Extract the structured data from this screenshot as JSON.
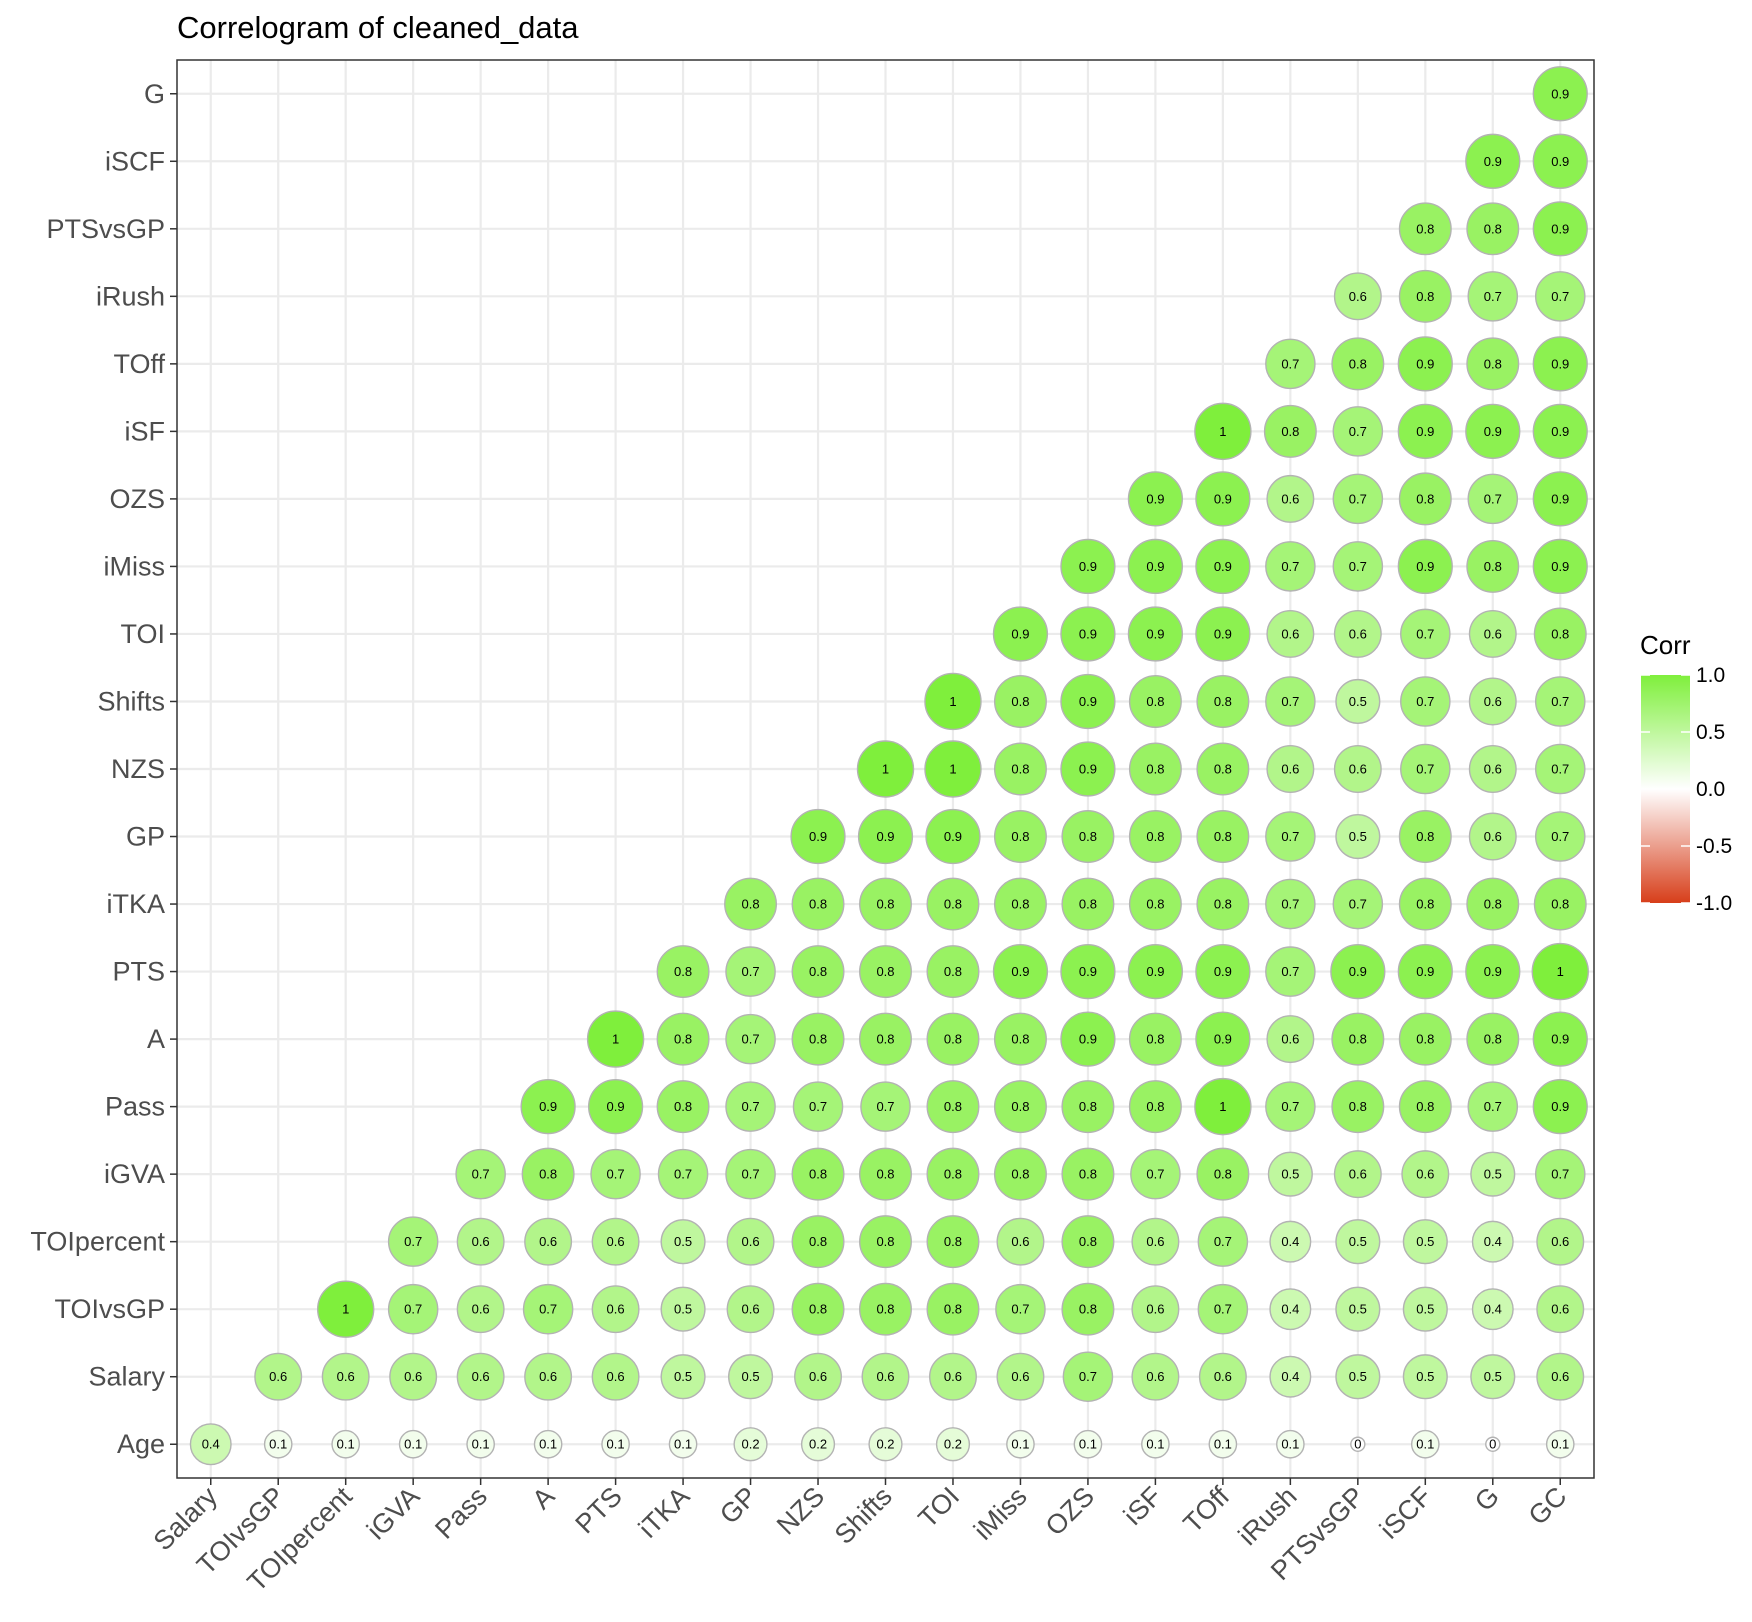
{
  "chart_data": {
    "type": "heatmap",
    "title": "Correlogram of cleaned_data",
    "xlabel": "",
    "ylabel": "",
    "x_categories": [
      "Salary",
      "TOIvsGP",
      "TOIpercent",
      "iGVA",
      "Pass",
      "A",
      "PTS",
      "iTKA",
      "GP",
      "NZS",
      "Shifts",
      "TOI",
      "iMiss",
      "OZS",
      "iSF",
      "TOff",
      "iRush",
      "PTSvsGP",
      "iSCF",
      "G",
      "GC"
    ],
    "y_categories": [
      "Age",
      "Salary",
      "TOIvsGP",
      "TOIpercent",
      "iGVA",
      "Pass",
      "A",
      "PTS",
      "iTKA",
      "GP",
      "NZS",
      "Shifts",
      "TOI",
      "iMiss",
      "OZS",
      "iSF",
      "TOff",
      "iRush",
      "PTSvsGP",
      "iSCF",
      "G"
    ],
    "rows": [
      {
        "y": "Age",
        "values": [
          0.4,
          0.1,
          0.1,
          0.1,
          0.1,
          0.1,
          0.1,
          0.1,
          0.2,
          0.2,
          0.2,
          0.2,
          0.1,
          0.1,
          0.1,
          0.1,
          0.1,
          0,
          0.1,
          0,
          0.1
        ]
      },
      {
        "y": "Salary",
        "values": [
          null,
          0.6,
          0.6,
          0.6,
          0.6,
          0.6,
          0.6,
          0.5,
          0.5,
          0.6,
          0.6,
          0.6,
          0.6,
          0.7,
          0.6,
          0.6,
          0.4,
          0.5,
          0.5,
          0.5,
          0.6
        ]
      },
      {
        "y": "TOIvsGP",
        "values": [
          null,
          null,
          1,
          0.7,
          0.6,
          0.7,
          0.6,
          0.5,
          0.6,
          0.8,
          0.8,
          0.8,
          0.7,
          0.8,
          0.6,
          0.7,
          0.4,
          0.5,
          0.5,
          0.4,
          0.6
        ]
      },
      {
        "y": "TOIpercent",
        "values": [
          null,
          null,
          null,
          0.7,
          0.6,
          0.6,
          0.6,
          0.5,
          0.6,
          0.8,
          0.8,
          0.8,
          0.6,
          0.8,
          0.6,
          0.7,
          0.4,
          0.5,
          0.5,
          0.4,
          0.6
        ]
      },
      {
        "y": "iGVA",
        "values": [
          null,
          null,
          null,
          null,
          0.7,
          0.8,
          0.7,
          0.7,
          0.7,
          0.8,
          0.8,
          0.8,
          0.8,
          0.8,
          0.7,
          0.8,
          0.5,
          0.6,
          0.6,
          0.5,
          0.7
        ]
      },
      {
        "y": "Pass",
        "values": [
          null,
          null,
          null,
          null,
          null,
          0.9,
          0.9,
          0.8,
          0.7,
          0.7,
          0.7,
          0.8,
          0.8,
          0.8,
          0.8,
          1,
          0.7,
          0.8,
          0.8,
          0.7,
          0.9
        ]
      },
      {
        "y": "A",
        "values": [
          null,
          null,
          null,
          null,
          null,
          null,
          1,
          0.8,
          0.7,
          0.8,
          0.8,
          0.8,
          0.8,
          0.9,
          0.8,
          0.9,
          0.6,
          0.8,
          0.8,
          0.8,
          0.9
        ]
      },
      {
        "y": "PTS",
        "values": [
          null,
          null,
          null,
          null,
          null,
          null,
          null,
          0.8,
          0.7,
          0.8,
          0.8,
          0.8,
          0.9,
          0.9,
          0.9,
          0.9,
          0.7,
          0.9,
          0.9,
          0.9,
          1
        ]
      },
      {
        "y": "iTKA",
        "values": [
          null,
          null,
          null,
          null,
          null,
          null,
          null,
          null,
          0.8,
          0.8,
          0.8,
          0.8,
          0.8,
          0.8,
          0.8,
          0.8,
          0.7,
          0.7,
          0.8,
          0.8,
          0.8
        ]
      },
      {
        "y": "GP",
        "values": [
          null,
          null,
          null,
          null,
          null,
          null,
          null,
          null,
          null,
          0.9,
          0.9,
          0.9,
          0.8,
          0.8,
          0.8,
          0.8,
          0.7,
          0.5,
          0.8,
          0.6,
          0.7
        ]
      },
      {
        "y": "NZS",
        "values": [
          null,
          null,
          null,
          null,
          null,
          null,
          null,
          null,
          null,
          null,
          1,
          1,
          0.8,
          0.9,
          0.8,
          0.8,
          0.6,
          0.6,
          0.7,
          0.6,
          0.7
        ]
      },
      {
        "y": "Shifts",
        "values": [
          null,
          null,
          null,
          null,
          null,
          null,
          null,
          null,
          null,
          null,
          null,
          1,
          0.8,
          0.9,
          0.8,
          0.8,
          0.7,
          0.5,
          0.7,
          0.6,
          0.7
        ]
      },
      {
        "y": "TOI",
        "values": [
          null,
          null,
          null,
          null,
          null,
          null,
          null,
          null,
          null,
          null,
          null,
          null,
          0.9,
          0.9,
          0.9,
          0.9,
          0.6,
          0.6,
          0.7,
          0.6,
          0.8
        ]
      },
      {
        "y": "iMiss",
        "values": [
          null,
          null,
          null,
          null,
          null,
          null,
          null,
          null,
          null,
          null,
          null,
          null,
          null,
          0.9,
          0.9,
          0.9,
          0.7,
          0.7,
          0.9,
          0.8,
          0.9
        ]
      },
      {
        "y": "OZS",
        "values": [
          null,
          null,
          null,
          null,
          null,
          null,
          null,
          null,
          null,
          null,
          null,
          null,
          null,
          null,
          0.9,
          0.9,
          0.6,
          0.7,
          0.8,
          0.7,
          0.9
        ]
      },
      {
        "y": "iSF",
        "values": [
          null,
          null,
          null,
          null,
          null,
          null,
          null,
          null,
          null,
          null,
          null,
          null,
          null,
          null,
          null,
          1,
          0.8,
          0.7,
          0.9,
          0.9,
          0.9
        ]
      },
      {
        "y": "TOff",
        "values": [
          null,
          null,
          null,
          null,
          null,
          null,
          null,
          null,
          null,
          null,
          null,
          null,
          null,
          null,
          null,
          null,
          0.7,
          0.8,
          0.9,
          0.8,
          0.9
        ]
      },
      {
        "y": "iRush",
        "values": [
          null,
          null,
          null,
          null,
          null,
          null,
          null,
          null,
          null,
          null,
          null,
          null,
          null,
          null,
          null,
          null,
          null,
          0.6,
          0.8,
          0.7,
          0.7
        ]
      },
      {
        "y": "PTSvsGP",
        "values": [
          null,
          null,
          null,
          null,
          null,
          null,
          null,
          null,
          null,
          null,
          null,
          null,
          null,
          null,
          null,
          null,
          null,
          null,
          0.8,
          0.8,
          0.9
        ]
      },
      {
        "y": "iSCF",
        "values": [
          null,
          null,
          null,
          null,
          null,
          null,
          null,
          null,
          null,
          null,
          null,
          null,
          null,
          null,
          null,
          null,
          null,
          null,
          null,
          0.9,
          0.9
        ]
      },
      {
        "y": "G",
        "values": [
          null,
          null,
          null,
          null,
          null,
          null,
          null,
          null,
          null,
          null,
          null,
          null,
          null,
          null,
          null,
          null,
          null,
          null,
          null,
          null,
          0.9
        ]
      }
    ],
    "legend": {
      "title": "Corr",
      "placement": "right",
      "ticks": [
        1.0,
        0.5,
        0.0,
        -0.5,
        -1.0
      ],
      "tick_labels": [
        "1.0",
        "0.5",
        "0.0",
        "-0.5",
        "-1.0"
      ],
      "range": [
        -1,
        1
      ]
    },
    "colors": {
      "high": "#7FEF3C",
      "mid": "#FFFFFF",
      "low": "#D73E1A",
      "outline": "#B3B3B3",
      "grid": "#EBEBEB",
      "panel_border": "#333333"
    },
    "grid": true
  }
}
